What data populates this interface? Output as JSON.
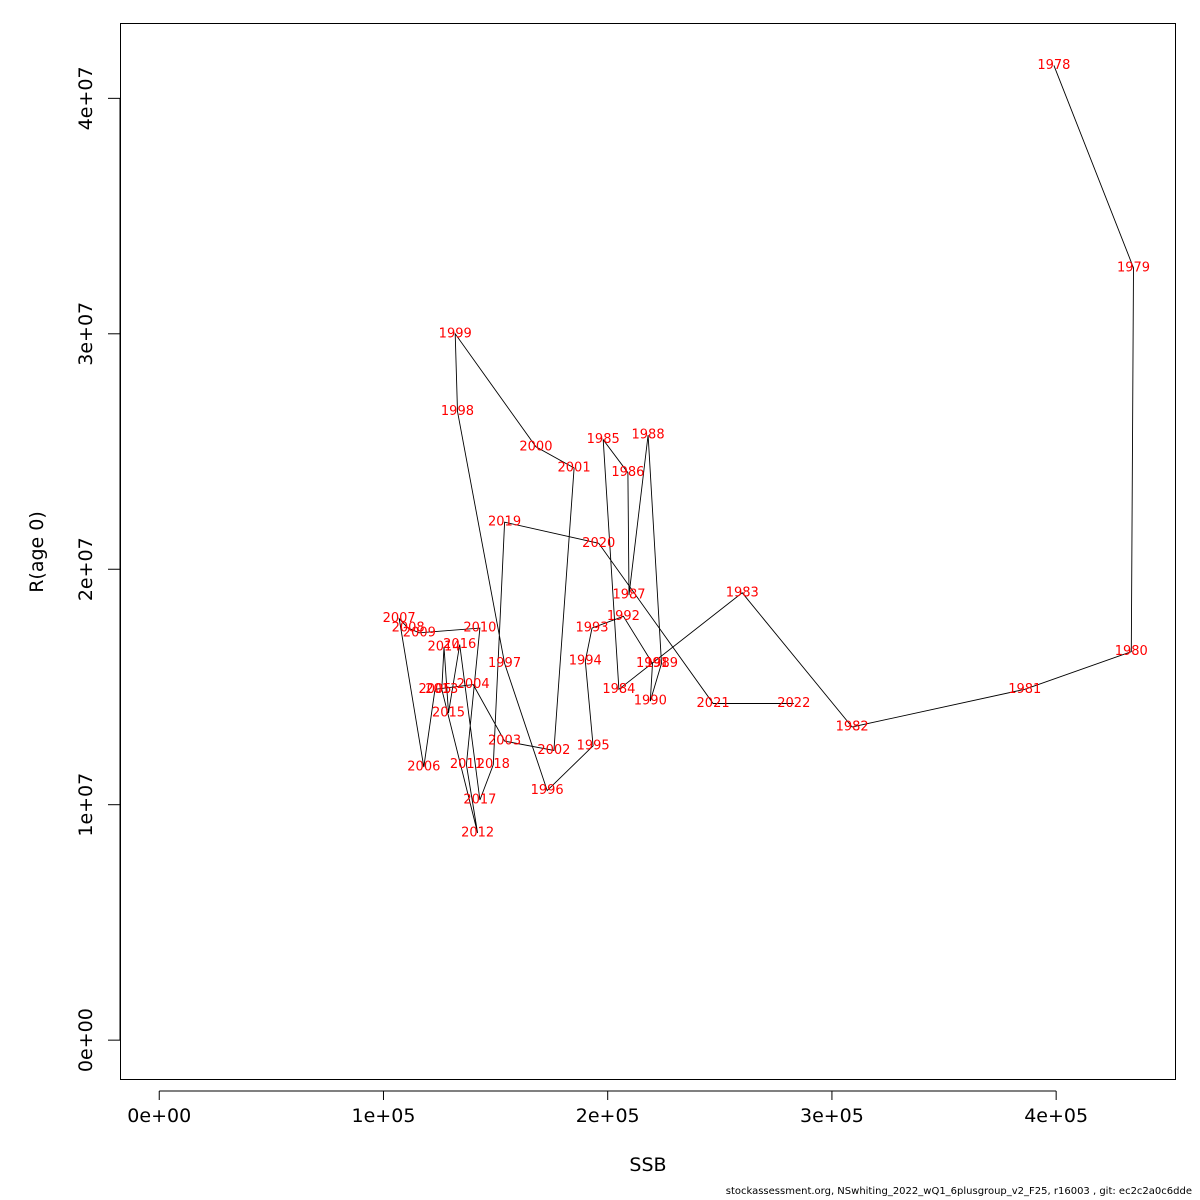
{
  "footer": "stockassessment.org, NSwhiting_2022_wQ1_6plusgroup_v2_F25, r16003 , git: ec2c2a0c6dde",
  "chart_data": {
    "type": "line",
    "xlabel": "SSB",
    "ylabel": "R(age 0)",
    "xlim": [
      -17500,
      453000
    ],
    "ylim": [
      -1650000,
      43200000
    ],
    "xticks": [
      0,
      100000,
      200000,
      300000,
      400000
    ],
    "xtick_labels": [
      "0e+00",
      "1e+05",
      "2e+05",
      "3e+05",
      "4e+05"
    ],
    "yticks": [
      0,
      10000000,
      20000000,
      30000000,
      40000000
    ],
    "ytick_labels": [
      "0e+00",
      "1e+07",
      "2e+07",
      "3e+07",
      "4e+07"
    ],
    "line_color": "#000000",
    "label_color": "#ff0000",
    "points": [
      {
        "label": "1978",
        "x": 399000,
        "y": 41400000
      },
      {
        "label": "1979",
        "x": 434500,
        "y": 32800000
      },
      {
        "label": "1980",
        "x": 433500,
        "y": 16500000
      },
      {
        "label": "1981",
        "x": 386000,
        "y": 14900000
      },
      {
        "label": "1982",
        "x": 309000,
        "y": 13300000
      },
      {
        "label": "1983",
        "x": 260000,
        "y": 19000000
      },
      {
        "label": "1984",
        "x": 205000,
        "y": 14900000
      },
      {
        "label": "1985",
        "x": 198000,
        "y": 25500000
      },
      {
        "label": "1986",
        "x": 209000,
        "y": 24100000
      },
      {
        "label": "1987",
        "x": 209500,
        "y": 18900000
      },
      {
        "label": "1988",
        "x": 218000,
        "y": 25700000
      },
      {
        "label": "1989",
        "x": 224000,
        "y": 16000000
      },
      {
        "label": "1990",
        "x": 219000,
        "y": 14400000
      },
      {
        "label": "1991",
        "x": 220000,
        "y": 16000000
      },
      {
        "label": "1992",
        "x": 207000,
        "y": 18000000
      },
      {
        "label": "1993",
        "x": 193000,
        "y": 17500000
      },
      {
        "label": "1994",
        "x": 190000,
        "y": 16100000
      },
      {
        "label": "1995",
        "x": 193500,
        "y": 12500000
      },
      {
        "label": "1996",
        "x": 173000,
        "y": 10600000
      },
      {
        "label": "1997",
        "x": 154000,
        "y": 16000000
      },
      {
        "label": "1998",
        "x": 133000,
        "y": 26700000
      },
      {
        "label": "1999",
        "x": 132000,
        "y": 30000000
      },
      {
        "label": "2000",
        "x": 168000,
        "y": 25200000
      },
      {
        "label": "2001",
        "x": 185000,
        "y": 24300000
      },
      {
        "label": "2002",
        "x": 176000,
        "y": 12300000
      },
      {
        "label": "2003",
        "x": 154000,
        "y": 12700000
      },
      {
        "label": "2004",
        "x": 140000,
        "y": 15100000
      },
      {
        "label": "2005",
        "x": 123000,
        "y": 14900000
      },
      {
        "label": "2006",
        "x": 118000,
        "y": 11600000
      },
      {
        "label": "2007",
        "x": 107000,
        "y": 17900000
      },
      {
        "label": "2008",
        "x": 111000,
        "y": 17500000
      },
      {
        "label": "2009",
        "x": 116000,
        "y": 17300000
      },
      {
        "label": "2010",
        "x": 143000,
        "y": 17500000
      },
      {
        "label": "2011",
        "x": 137000,
        "y": 11700000
      },
      {
        "label": "2012",
        "x": 142000,
        "y": 8800000
      },
      {
        "label": "2013",
        "x": 126000,
        "y": 14900000
      },
      {
        "label": "2014",
        "x": 127000,
        "y": 16700000
      },
      {
        "label": "2015",
        "x": 129000,
        "y": 13900000
      },
      {
        "label": "2016",
        "x": 134000,
        "y": 16800000
      },
      {
        "label": "2017",
        "x": 143000,
        "y": 10200000
      },
      {
        "label": "2018",
        "x": 149000,
        "y": 11700000
      },
      {
        "label": "2019",
        "x": 154000,
        "y": 22000000
      },
      {
        "label": "2020",
        "x": 196000,
        "y": 21100000
      },
      {
        "label": "2021",
        "x": 247000,
        "y": 14300000
      },
      {
        "label": "2022",
        "x": 283000,
        "y": 14300000
      }
    ]
  }
}
